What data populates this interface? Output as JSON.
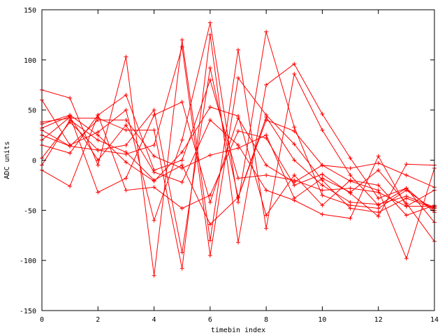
{
  "chart_data": {
    "type": "line",
    "title": "",
    "xlabel": "timebin index",
    "ylabel": "ADC units",
    "xlim": [
      0,
      14
    ],
    "ylim": [
      -150,
      150
    ],
    "xticks": [
      0,
      2,
      4,
      6,
      8,
      10,
      12,
      14
    ],
    "yticks": [
      -150,
      -100,
      -50,
      0,
      50,
      100,
      150
    ],
    "grid": false,
    "legend": "none",
    "color": "#ff0000",
    "x": [
      0,
      1,
      2,
      3,
      4,
      5,
      6,
      7,
      8,
      9,
      10,
      11,
      12,
      13,
      14
    ],
    "series": [
      {
        "values": [
          70,
          62,
          -5,
          103,
          -115,
          120,
          -80,
          110,
          -68,
          86,
          30,
          -15,
          -45,
          -28,
          -62
        ]
      },
      {
        "values": [
          60,
          15,
          28,
          50,
          -60,
          20,
          137,
          -42,
          128,
          33,
          -35,
          -45,
          -48,
          -30,
          -50
        ]
      },
      {
        "values": [
          38,
          42,
          42,
          30,
          30,
          -108,
          125,
          -82,
          75,
          96,
          46,
          2,
          -38,
          -28,
          -52
        ]
      },
      {
        "values": [
          25,
          14,
          10,
          6,
          15,
          113,
          -95,
          82,
          45,
          16,
          -20,
          -48,
          -52,
          -38,
          -48
        ]
      },
      {
        "values": [
          2,
          38,
          10,
          15,
          50,
          -92,
          92,
          -37,
          40,
          29,
          -5,
          -21,
          -30,
          -98,
          -8
        ]
      },
      {
        "values": [
          32,
          44,
          -32,
          -18,
          45,
          58,
          -42,
          42,
          -5,
          -22,
          -5,
          -8,
          -3,
          -15,
          -27
        ]
      },
      {
        "values": [
          -10,
          -26,
          45,
          -30,
          -27,
          -48,
          -35,
          29,
          22,
          -25,
          -14,
          -33,
          -56,
          -4,
          -5
        ]
      },
      {
        "values": [
          20,
          43,
          0,
          35,
          -12,
          -22,
          40,
          15,
          -30,
          -40,
          -54,
          -58,
          4,
          -46,
          -30
        ]
      },
      {
        "values": [
          36,
          45,
          25,
          -2,
          -21,
          8,
          53,
          44,
          -55,
          -15,
          -45,
          -20,
          -25,
          -55,
          -45
        ]
      },
      {
        "values": [
          15,
          7,
          45,
          65,
          -10,
          0,
          80,
          -18,
          -15,
          -20,
          -30,
          -28,
          -32,
          -46,
          -46
        ]
      },
      {
        "values": [
          30,
          14,
          40,
          40,
          4,
          -8,
          5,
          12,
          25,
          -38,
          -18,
          -32,
          -10,
          -43,
          -81
        ]
      },
      {
        "values": [
          -5,
          40,
          20,
          8,
          -20,
          -5,
          -64,
          -37,
          43,
          0,
          -25,
          -42,
          -44,
          -36,
          -47
        ]
      }
    ]
  }
}
